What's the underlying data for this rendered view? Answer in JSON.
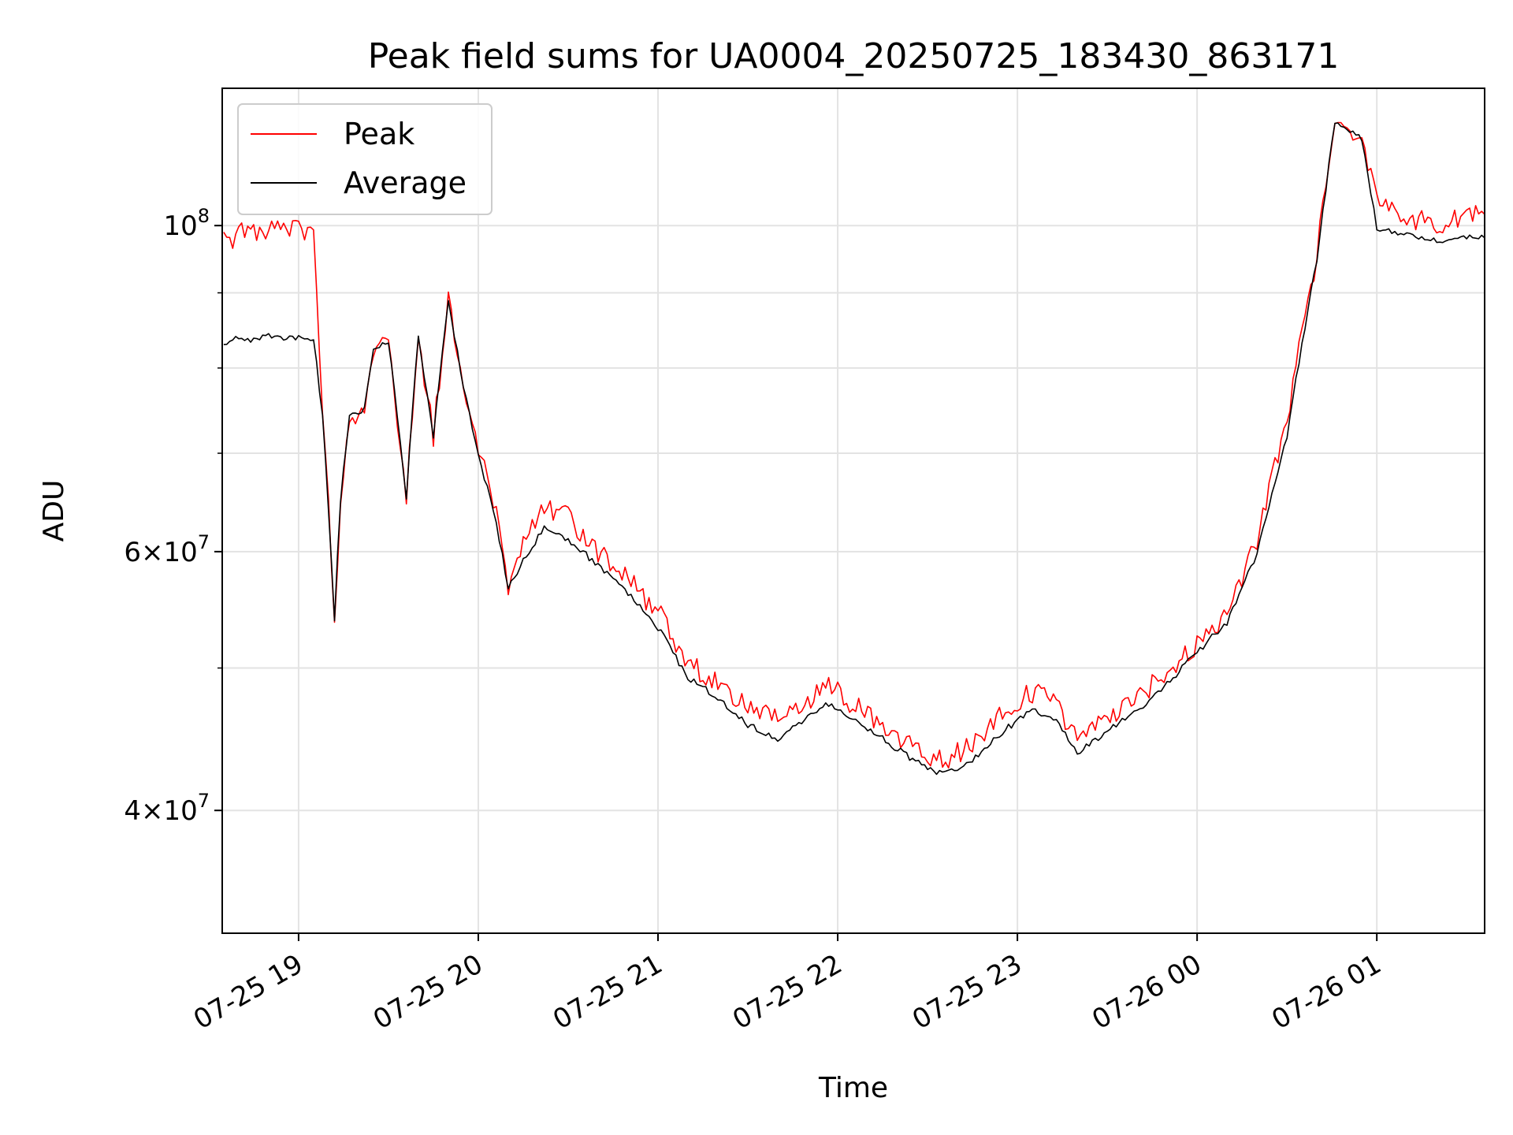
{
  "chart_data": {
    "type": "line",
    "title": "Peak field sums for UA0004_20250725_183430_863171",
    "xlabel": "Time",
    "ylabel": "ADU",
    "x_range": [
      "2025-07-25 18:34:30",
      "2025-07-26 01:36:00"
    ],
    "ylim": [
      33000000,
      124000000
    ],
    "yscale": "log",
    "grid": true,
    "legend_position": "upper left",
    "x_ticks": [
      "07-25 19",
      "07-25 20",
      "07-25 21",
      "07-25 22",
      "07-25 23",
      "07-26 00",
      "07-26 01"
    ],
    "y_ticks": [
      {
        "value": 100000000,
        "base": "10",
        "exp": "8",
        "mantissa": ""
      },
      {
        "value": 60000000,
        "base": "10",
        "exp": "7",
        "mantissa": "6"
      },
      {
        "value": 40000000,
        "base": "10",
        "exp": "7",
        "mantissa": "4"
      }
    ],
    "series": [
      {
        "name": "Peak",
        "color": "#ff0000",
        "points": [
          [
            "2025-07-25 18:35",
            99000000
          ],
          [
            "2025-07-25 18:40",
            100500000
          ],
          [
            "2025-07-25 18:45",
            101000000
          ],
          [
            "2025-07-25 18:50",
            101500000
          ],
          [
            "2025-07-25 18:55",
            101000000
          ],
          [
            "2025-07-25 19:00",
            101500000
          ],
          [
            "2025-07-25 19:05",
            100500000
          ],
          [
            "2025-07-25 19:08",
            76000000
          ],
          [
            "2025-07-25 19:12",
            54500000
          ],
          [
            "2025-07-25 19:14",
            66500000
          ],
          [
            "2025-07-25 19:17",
            75500000
          ],
          [
            "2025-07-25 19:22",
            76500000
          ],
          [
            "2025-07-25 19:25",
            84000000
          ],
          [
            "2025-07-25 19:30",
            85000000
          ],
          [
            "2025-07-25 19:36",
            66000000
          ],
          [
            "2025-07-25 19:40",
            85500000
          ],
          [
            "2025-07-25 19:45",
            73000000
          ],
          [
            "2025-07-25 19:50",
            90500000
          ],
          [
            "2025-07-25 19:55",
            79000000
          ],
          [
            "2025-07-25 20:00",
            72000000
          ],
          [
            "2025-07-25 20:05",
            66000000
          ],
          [
            "2025-07-25 20:10",
            58000000
          ],
          [
            "2025-07-25 20:15",
            61500000
          ],
          [
            "2025-07-25 20:22",
            65500000
          ],
          [
            "2025-07-25 20:30",
            64500000
          ],
          [
            "2025-07-25 20:40",
            61000000
          ],
          [
            "2025-07-25 20:50",
            58500000
          ],
          [
            "2025-07-25 21:00",
            55500000
          ],
          [
            "2025-07-25 21:10",
            51500000
          ],
          [
            "2025-07-25 21:20",
            49500000
          ],
          [
            "2025-07-25 21:30",
            48000000
          ],
          [
            "2025-07-25 21:40",
            47000000
          ],
          [
            "2025-07-25 21:50",
            48500000
          ],
          [
            "2025-07-25 21:57",
            49500000
          ],
          [
            "2025-07-25 22:05",
            48000000
          ],
          [
            "2025-07-25 22:15",
            46500000
          ],
          [
            "2025-07-25 22:25",
            45000000
          ],
          [
            "2025-07-25 22:35",
            44000000
          ],
          [
            "2025-07-25 22:45",
            45000000
          ],
          [
            "2025-07-25 22:55",
            47500000
          ],
          [
            "2025-07-25 23:05",
            49000000
          ],
          [
            "2025-07-25 23:12",
            48500000
          ],
          [
            "2025-07-25 23:20",
            45500000
          ],
          [
            "2025-07-25 23:30",
            47000000
          ],
          [
            "2025-07-25 23:40",
            48500000
          ],
          [
            "2025-07-25 23:50",
            50500000
          ],
          [
            "2025-07-26 00:00",
            53000000
          ],
          [
            "2025-07-26 00:10",
            55500000
          ],
          [
            "2025-07-26 00:20",
            62000000
          ],
          [
            "2025-07-26 00:30",
            75000000
          ],
          [
            "2025-07-26 00:40",
            97000000
          ],
          [
            "2025-07-26 00:46",
            119000000
          ],
          [
            "2025-07-26 00:55",
            117000000
          ],
          [
            "2025-07-26 01:00",
            106000000
          ],
          [
            "2025-07-26 01:10",
            103000000
          ],
          [
            "2025-07-26 01:20",
            102000000
          ],
          [
            "2025-07-26 01:36",
            104000000
          ]
        ]
      },
      {
        "name": "Average",
        "color": "#000000",
        "points": [
          [
            "2025-07-25 18:35",
            83000000
          ],
          [
            "2025-07-25 18:40",
            84500000
          ],
          [
            "2025-07-25 18:45",
            84000000
          ],
          [
            "2025-07-25 18:50",
            84500000
          ],
          [
            "2025-07-25 18:55",
            84000000
          ],
          [
            "2025-07-25 19:00",
            84500000
          ],
          [
            "2025-07-25 19:05",
            84000000
          ],
          [
            "2025-07-25 19:08",
            74500000
          ],
          [
            "2025-07-25 19:12",
            54000000
          ],
          [
            "2025-07-25 19:14",
            65500000
          ],
          [
            "2025-07-25 19:17",
            74500000
          ],
          [
            "2025-07-25 19:22",
            75500000
          ],
          [
            "2025-07-25 19:25",
            83000000
          ],
          [
            "2025-07-25 19:30",
            84000000
          ],
          [
            "2025-07-25 19:36",
            65500000
          ],
          [
            "2025-07-25 19:40",
            84500000
          ],
          [
            "2025-07-25 19:45",
            72000000
          ],
          [
            "2025-07-25 19:50",
            89000000
          ],
          [
            "2025-07-25 19:55",
            78000000
          ],
          [
            "2025-07-25 20:00",
            70000000
          ],
          [
            "2025-07-25 20:05",
            64500000
          ],
          [
            "2025-07-25 20:10",
            57000000
          ],
          [
            "2025-07-25 20:15",
            59500000
          ],
          [
            "2025-07-25 20:22",
            62500000
          ],
          [
            "2025-07-25 20:30",
            61500000
          ],
          [
            "2025-07-25 20:40",
            59000000
          ],
          [
            "2025-07-25 20:50",
            56500000
          ],
          [
            "2025-07-25 21:00",
            53500000
          ],
          [
            "2025-07-25 21:10",
            49500000
          ],
          [
            "2025-07-25 21:20",
            48000000
          ],
          [
            "2025-07-25 21:30",
            46000000
          ],
          [
            "2025-07-25 21:40",
            45000000
          ],
          [
            "2025-07-25 21:50",
            46500000
          ],
          [
            "2025-07-25 21:57",
            47500000
          ],
          [
            "2025-07-25 22:05",
            46500000
          ],
          [
            "2025-07-25 22:15",
            45000000
          ],
          [
            "2025-07-25 22:25",
            43500000
          ],
          [
            "2025-07-25 22:35",
            42500000
          ],
          [
            "2025-07-25 22:45",
            43500000
          ],
          [
            "2025-07-25 22:55",
            45500000
          ],
          [
            "2025-07-25 23:05",
            47000000
          ],
          [
            "2025-07-25 23:12",
            46500000
          ],
          [
            "2025-07-25 23:20",
            44000000
          ],
          [
            "2025-07-25 23:30",
            45500000
          ],
          [
            "2025-07-25 23:40",
            47000000
          ],
          [
            "2025-07-25 23:50",
            49000000
          ],
          [
            "2025-07-26 00:00",
            51500000
          ],
          [
            "2025-07-26 00:10",
            54000000
          ],
          [
            "2025-07-26 00:20",
            60000000
          ],
          [
            "2025-07-26 00:30",
            72000000
          ],
          [
            "2025-07-26 00:40",
            95000000
          ],
          [
            "2025-07-26 00:46",
            118000000
          ],
          [
            "2025-07-26 00:55",
            115000000
          ],
          [
            "2025-07-26 01:00",
            100000000
          ],
          [
            "2025-07-26 01:10",
            99000000
          ],
          [
            "2025-07-26 01:20",
            98000000
          ],
          [
            "2025-07-26 01:36",
            99000000
          ]
        ]
      }
    ]
  }
}
